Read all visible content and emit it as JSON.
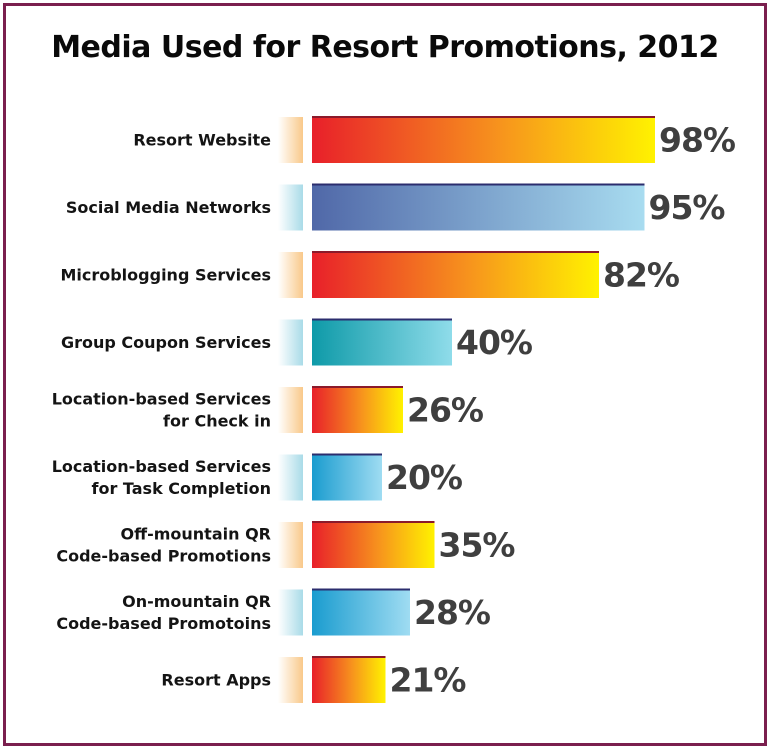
{
  "chart_data": {
    "type": "bar",
    "orientation": "horizontal",
    "title": "Media Used for Resort Promotions, 2012",
    "categories": [
      "Resort Website",
      "Social Media Networks",
      "Microblogging Services",
      "Group Coupon Services",
      "Location-based Services\nfor Check in",
      "Location-based Services\nfor Task Completion",
      "Off-mountain QR\nCode-based Promotions",
      "On-mountain QR\nCode-based Promotoins",
      "Resort Apps"
    ],
    "values": [
      98,
      95,
      82,
      40,
      26,
      20,
      35,
      28,
      21
    ],
    "value_labels": [
      "98%",
      "95%",
      "82%",
      "40%",
      "26%",
      "20%",
      "35%",
      "28%",
      "21%"
    ],
    "bar_styles": [
      "warm",
      "blue",
      "warm",
      "teal",
      "warm",
      "cyan",
      "warm",
      "cyan",
      "warm"
    ],
    "xlim": [
      0,
      100
    ],
    "grid": false,
    "legend": "none"
  },
  "colors": {
    "frame": "#7a1f4e",
    "warm_start": "#e8202a",
    "warm_mid": "#f7941d",
    "warm_end": "#fff200",
    "warm_topline": "#8b1a2b",
    "blue_start": "#5068a8",
    "blue_end": "#a8dcf0",
    "blue_topline": "#2b2d6e",
    "teal_start": "#0e9aa8",
    "teal_end": "#8fdcea",
    "cyan_start": "#1a9ccf",
    "cyan_end": "#9fdcf2",
    "value_text": "#3f3f3f"
  }
}
